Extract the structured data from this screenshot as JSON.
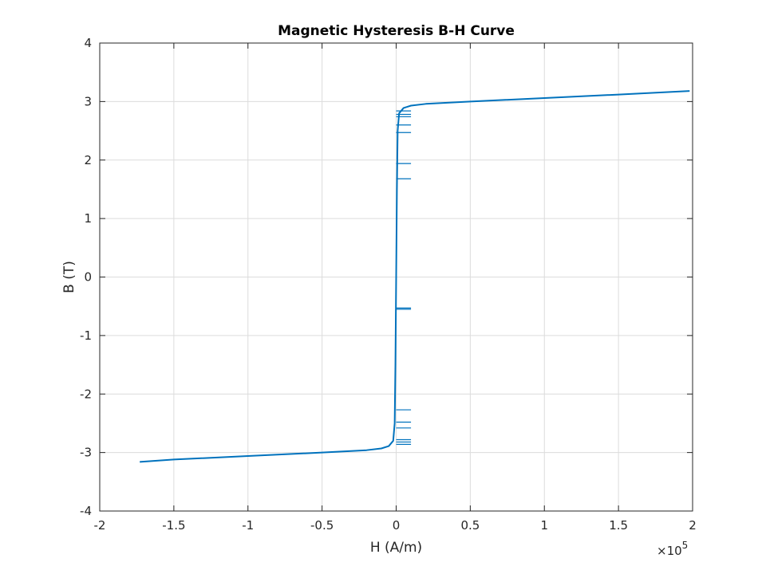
{
  "chart_data": {
    "type": "line",
    "title": "Magnetic Hysteresis B-H Curve",
    "xlabel": "H (A/m)",
    "ylabel": "B (T)",
    "x_exponent_base": "×10",
    "x_exponent_power": "5",
    "xlim": [
      -200000,
      200000
    ],
    "ylim": [
      -4,
      4
    ],
    "x_tick_labels": [
      "-2",
      "-1.5",
      "-1",
      "-0.5",
      "0",
      "0.5",
      "1",
      "1.5",
      "2"
    ],
    "y_tick_labels": [
      "-4",
      "-3",
      "-2",
      "-1",
      "0",
      "1",
      "2",
      "3",
      "4"
    ],
    "grid": true,
    "line_color": "#0072BD",
    "series": [
      {
        "x": [
          -173000,
          -150000,
          -100000,
          -50000,
          -20000,
          -10000,
          -5000,
          -2000,
          -1000,
          -500,
          0,
          500,
          1000,
          2000,
          5000,
          10000,
          20000,
          50000,
          100000,
          150000,
          198000
        ],
        "y": [
          -3.16,
          -3.12,
          -3.06,
          -3.0,
          -2.96,
          -2.93,
          -2.89,
          -2.8,
          -2.5,
          -1.5,
          0.0,
          1.5,
          2.5,
          2.8,
          2.89,
          2.93,
          2.96,
          3.0,
          3.06,
          3.12,
          3.18
        ]
      }
    ],
    "spurs": [
      {
        "y": 2.84,
        "x_end": 10000
      },
      {
        "y": 2.78,
        "x_end": 10000
      },
      {
        "y": 2.74,
        "x_end": 10000
      },
      {
        "y": 2.6,
        "x_end": 10000
      },
      {
        "y": 2.47,
        "x_end": 10000
      },
      {
        "y": 1.94,
        "x_end": 10000
      },
      {
        "y": 1.68,
        "x_end": 10000
      },
      {
        "y": -0.53,
        "x_end": 10000
      },
      {
        "y": -0.55,
        "x_end": 10000
      },
      {
        "y": -2.27,
        "x_end": 10000
      },
      {
        "y": -2.48,
        "x_end": 10000
      },
      {
        "y": -2.58,
        "x_end": 10000
      },
      {
        "y": -2.78,
        "x_end": 10000
      },
      {
        "y": -2.82,
        "x_end": 10000
      },
      {
        "y": -2.86,
        "x_end": 10000
      }
    ]
  }
}
